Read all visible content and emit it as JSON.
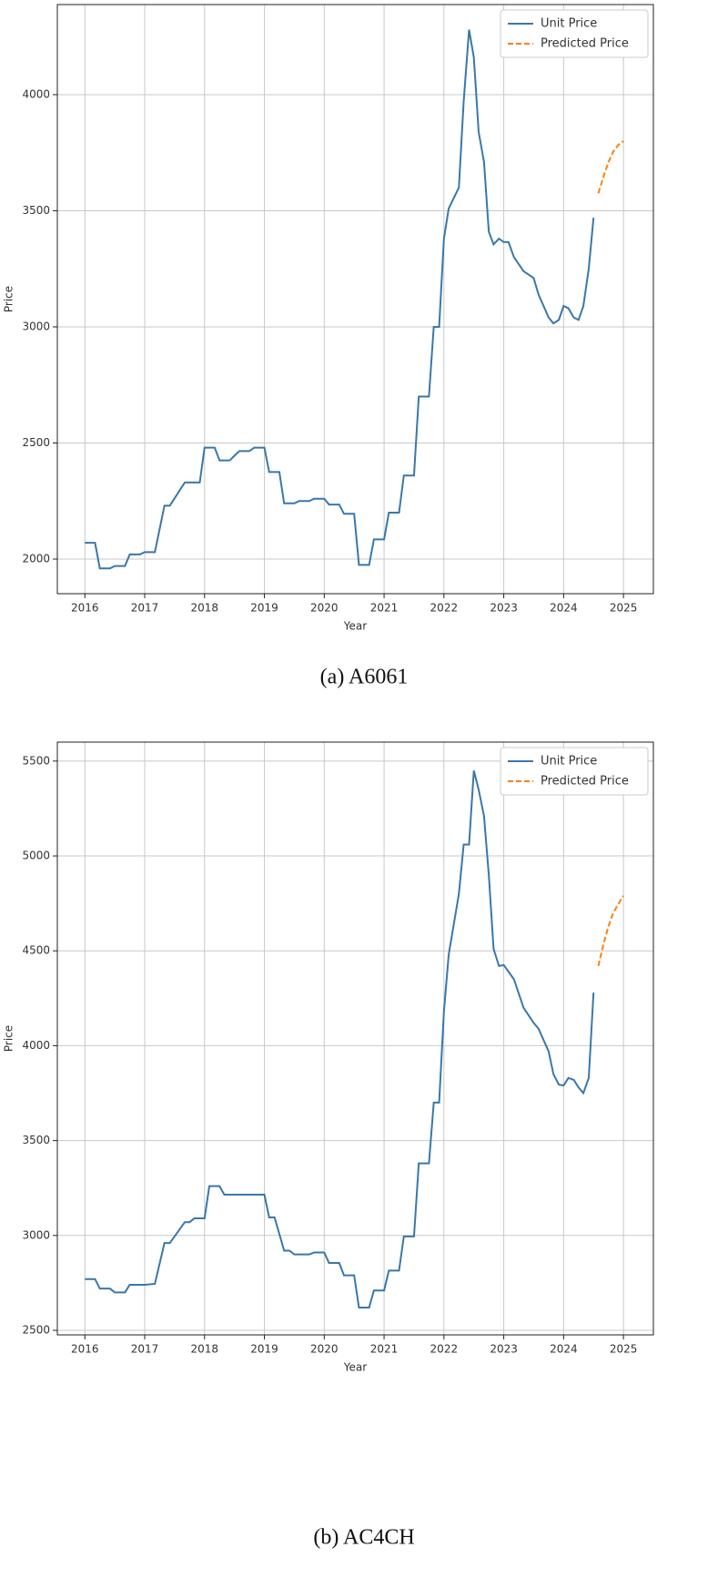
{
  "chart_data": [
    {
      "type": "line",
      "caption": "(a) A6061",
      "x_label": "Year",
      "y_label": "Price",
      "xlim": [
        2015.54,
        2025.5
      ],
      "ylim": [
        1851,
        4388
      ],
      "xticks": [
        2016,
        2017,
        2018,
        2019,
        2020,
        2021,
        2022,
        2023,
        2024,
        2025
      ],
      "yticks": [
        2000,
        2500,
        3000,
        3500,
        4000
      ],
      "grid": true,
      "legend": "upper right",
      "series": [
        {
          "name": "Unit Price",
          "color": "#3a77ab",
          "style": "solid",
          "x": [
            2016.0,
            2016.17,
            2016.25,
            2016.42,
            2016.5,
            2016.67,
            2016.75,
            2016.92,
            2017.0,
            2017.17,
            2017.33,
            2017.42,
            2017.67,
            2017.92,
            2018.0,
            2018.17,
            2018.25,
            2018.42,
            2018.58,
            2018.75,
            2018.83,
            2019.0,
            2019.08,
            2019.25,
            2019.33,
            2019.5,
            2019.58,
            2019.75,
            2019.83,
            2020.0,
            2020.08,
            2020.25,
            2020.33,
            2020.5,
            2020.58,
            2020.75,
            2020.83,
            2021.0,
            2021.08,
            2021.25,
            2021.33,
            2021.5,
            2021.58,
            2021.75,
            2021.83,
            2021.92,
            2022.0,
            2022.08,
            2022.25,
            2022.33,
            2022.42,
            2022.5,
            2022.58,
            2022.67,
            2022.75,
            2022.83,
            2022.92,
            2023.0,
            2023.08,
            2023.17,
            2023.33,
            2023.5,
            2023.58,
            2023.75,
            2023.83,
            2023.92,
            2024.0,
            2024.08,
            2024.17,
            2024.25,
            2024.33,
            2024.42,
            2024.5
          ],
          "values": [
            2070,
            2070,
            1960,
            1960,
            1970,
            1970,
            2020,
            2020,
            2030,
            2030,
            2230,
            2230,
            2330,
            2330,
            2480,
            2480,
            2425,
            2425,
            2465,
            2465,
            2480,
            2480,
            2375,
            2375,
            2240,
            2240,
            2250,
            2250,
            2260,
            2260,
            2235,
            2235,
            2195,
            2195,
            1975,
            1975,
            2085,
            2085,
            2200,
            2200,
            2360,
            2360,
            2700,
            2700,
            3000,
            3000,
            3380,
            3510,
            3600,
            3970,
            4280,
            4160,
            3840,
            3710,
            3410,
            3355,
            3380,
            3365,
            3365,
            3300,
            3240,
            3210,
            3140,
            3040,
            3015,
            3030,
            3090,
            3080,
            3040,
            3030,
            3090,
            3250,
            3470
          ]
        },
        {
          "name": "Predicted Price",
          "color": "#ff7f0e",
          "style": "dashed",
          "x": [
            2024.58,
            2024.67,
            2024.75,
            2024.83,
            2024.92,
            2025.0
          ],
          "values": [
            3575,
            3650,
            3710,
            3755,
            3785,
            3800
          ]
        }
      ]
    },
    {
      "type": "line",
      "caption": "(b) AC4CH",
      "x_label": "Year",
      "y_label": "Price",
      "xlim": [
        2015.54,
        2025.5
      ],
      "ylim": [
        2476,
        5600
      ],
      "xticks": [
        2016,
        2017,
        2018,
        2019,
        2020,
        2021,
        2022,
        2023,
        2024,
        2025
      ],
      "yticks": [
        2500,
        3000,
        3500,
        4000,
        4500,
        5000,
        5500
      ],
      "grid": true,
      "legend": "upper right",
      "series": [
        {
          "name": "Unit Price",
          "color": "#3a77ab",
          "style": "solid",
          "x": [
            2016.0,
            2016.17,
            2016.25,
            2016.42,
            2016.5,
            2016.67,
            2016.75,
            2017.0,
            2017.17,
            2017.33,
            2017.42,
            2017.67,
            2017.75,
            2017.83,
            2018.0,
            2018.08,
            2018.25,
            2018.33,
            2019.0,
            2019.08,
            2019.17,
            2019.33,
            2019.42,
            2019.5,
            2019.75,
            2019.83,
            2020.0,
            2020.08,
            2020.25,
            2020.33,
            2020.5,
            2020.58,
            2020.75,
            2020.83,
            2021.0,
            2021.08,
            2021.25,
            2021.33,
            2021.5,
            2021.58,
            2021.75,
            2021.83,
            2021.92,
            2022.0,
            2022.08,
            2022.25,
            2022.33,
            2022.42,
            2022.5,
            2022.58,
            2022.67,
            2022.75,
            2022.83,
            2022.92,
            2023.0,
            2023.17,
            2023.33,
            2023.5,
            2023.58,
            2023.75,
            2023.83,
            2023.92,
            2024.0,
            2024.08,
            2024.17,
            2024.25,
            2024.33,
            2024.42,
            2024.5
          ],
          "values": [
            2770,
            2770,
            2720,
            2720,
            2700,
            2700,
            2740,
            2740,
            2745,
            2960,
            2960,
            3070,
            3070,
            3090,
            3090,
            3260,
            3260,
            3215,
            3215,
            3095,
            3095,
            2920,
            2920,
            2900,
            2900,
            2910,
            2910,
            2855,
            2855,
            2790,
            2790,
            2620,
            2620,
            2710,
            2710,
            2815,
            2815,
            2995,
            2995,
            3380,
            3380,
            3700,
            3700,
            4180,
            4480,
            4800,
            5060,
            5060,
            5450,
            5350,
            5210,
            4900,
            4510,
            4420,
            4425,
            4350,
            4200,
            4120,
            4090,
            3970,
            3850,
            3795,
            3790,
            3830,
            3820,
            3780,
            3750,
            3830,
            4280
          ]
        },
        {
          "name": "Predicted Price",
          "color": "#ff7f0e",
          "style": "dashed",
          "x": [
            2024.58,
            2024.67,
            2024.75,
            2024.83,
            2024.92,
            2025.0
          ],
          "values": [
            4420,
            4540,
            4630,
            4700,
            4750,
            4790
          ]
        }
      ]
    }
  ]
}
